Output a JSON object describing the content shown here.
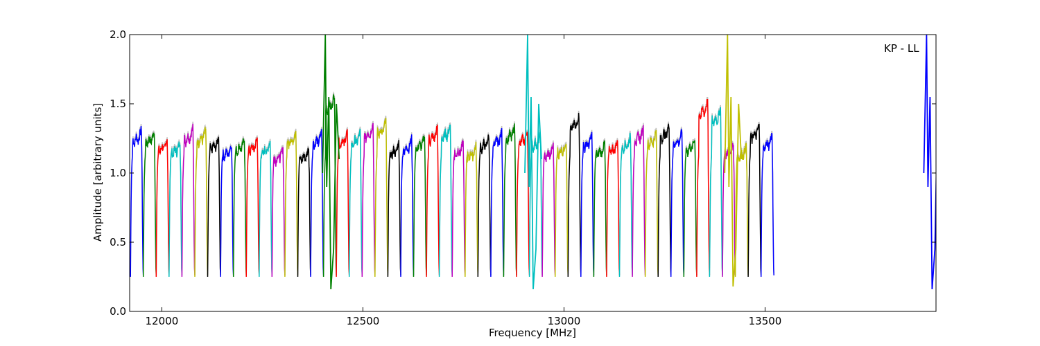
{
  "chart_data": {
    "type": "line",
    "title": "",
    "annotation": "KP - LL",
    "xlabel": "Frequency [MHz]",
    "ylabel": "Amplitude [arbitrary units]",
    "xlim": [
      11920,
      13925
    ],
    "ylim": [
      0.0,
      2.0
    ],
    "xticks": [
      12000,
      12500,
      13000,
      13500
    ],
    "yticks": [
      0.0,
      0.5,
      1.0,
      1.5,
      2.0
    ],
    "ytick_labels": [
      "0.0",
      "0.5",
      "1.0",
      "1.5",
      "2.0"
    ],
    "grid": false,
    "legend": "none",
    "colors": [
      "#0000ff",
      "#008000",
      "#ff0000",
      "#00bfbf",
      "#bf00bf",
      "#bfbf00",
      "#000000"
    ],
    "background_color": "#c0c0c0",
    "channel": {
      "count": 50,
      "start": 11922,
      "width": 32,
      "shape_x": [
        0,
        0.06,
        0.12,
        0.2,
        0.3,
        0.45,
        0.6,
        0.75,
        0.85,
        0.9,
        0.94,
        0.97,
        1.0
      ],
      "shape_y": [
        0.25,
        0.9,
        1.08,
        1.18,
        1.14,
        1.2,
        1.16,
        1.22,
        1.25,
        1.0,
        0.6,
        0.32,
        0.26
      ],
      "peaks": [
        1.32,
        1.31,
        1.25,
        1.23,
        1.33,
        1.32,
        1.26,
        1.21,
        1.25,
        1.25,
        1.23,
        1.18,
        1.31,
        1.18,
        1.3,
        1.57,
        1.3,
        1.3,
        1.36,
        1.38,
        1.22,
        1.25,
        1.27,
        1.33,
        1.35,
        1.22,
        1.2,
        1.27,
        1.3,
        1.34,
        1.31,
        1.28,
        1.2,
        1.23,
        1.42,
        1.28,
        1.22,
        1.24,
        1.27,
        1.33,
        1.3,
        1.35,
        1.3,
        1.25,
        1.53,
        1.47,
        1.22,
        1.2,
        1.35,
        1.28
      ]
    },
    "spikes": [
      {
        "x": 12410,
        "y_top": 2.0,
        "y_bottom": 0.16,
        "color_index": 1
      },
      {
        "x": 12913,
        "y_top": 2.0,
        "y_bottom": 0.16,
        "color_index": 3
      },
      {
        "x": 13410,
        "y_top": 2.0,
        "y_bottom": 0.18,
        "color_index": 5
      },
      {
        "x": 13905,
        "y_top": 2.0,
        "y_bottom": 0.16,
        "color_index": 0
      }
    ]
  }
}
